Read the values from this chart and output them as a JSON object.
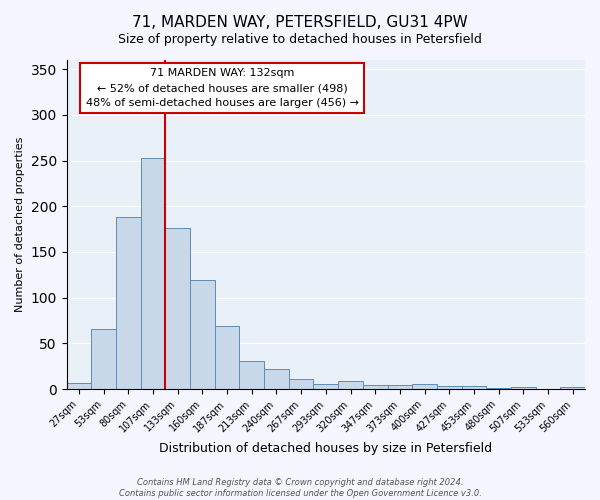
{
  "title": "71, MARDEN WAY, PETERSFIELD, GU31 4PW",
  "subtitle": "Size of property relative to detached houses in Petersfield",
  "xlabel": "Distribution of detached houses by size in Petersfield",
  "ylabel": "Number of detached properties",
  "bar_labels": [
    "27sqm",
    "53sqm",
    "80sqm",
    "107sqm",
    "133sqm",
    "160sqm",
    "187sqm",
    "213sqm",
    "240sqm",
    "267sqm",
    "293sqm",
    "320sqm",
    "347sqm",
    "373sqm",
    "400sqm",
    "427sqm",
    "453sqm",
    "480sqm",
    "507sqm",
    "533sqm",
    "560sqm"
  ],
  "bar_heights": [
    7,
    66,
    188,
    253,
    176,
    119,
    69,
    31,
    22,
    11,
    5,
    9,
    4,
    4,
    5,
    3,
    3,
    1,
    2,
    0,
    2
  ],
  "bar_color": "#c8d8e8",
  "bar_edge_color": "#5b8db8",
  "vline_color": "#cc0000",
  "vline_pos": 3.5,
  "annotation_title": "71 MARDEN WAY: 132sqm",
  "annotation_line1": "← 52% of detached houses are smaller (498)",
  "annotation_line2": "48% of semi-detached houses are larger (456) →",
  "annotation_box_color": "#ffffff",
  "annotation_box_edge": "#cc0000",
  "ylim": [
    0,
    360
  ],
  "yticks": [
    0,
    50,
    100,
    150,
    200,
    250,
    300,
    350
  ],
  "plot_bg_color": "#eaf0f8",
  "fig_bg_color": "#f5f5ff",
  "footer_line1": "Contains HM Land Registry data © Crown copyright and database right 2024.",
  "footer_line2": "Contains public sector information licensed under the Open Government Licence v3.0.",
  "title_fontsize": 11,
  "subtitle_fontsize": 9,
  "axis_label_fontsize": 8,
  "tick_fontsize": 7,
  "annotation_fontsize": 8,
  "footer_fontsize": 6
}
